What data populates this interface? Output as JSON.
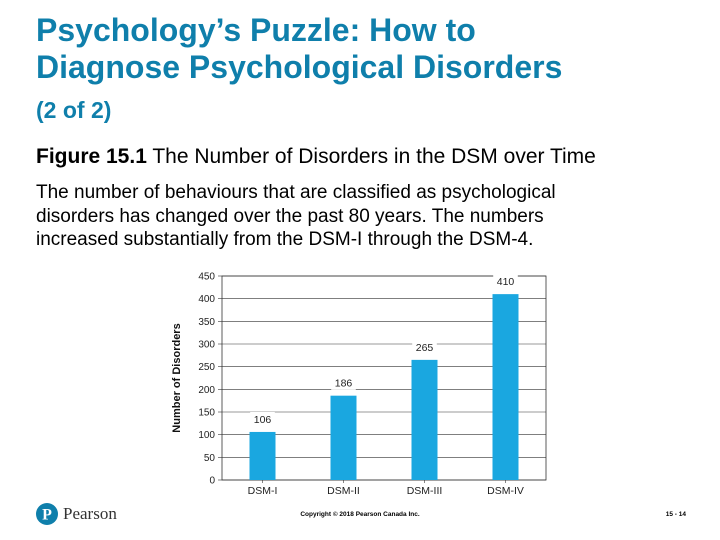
{
  "slide": {
    "title_line1": "Psychology’s Puzzle: How to",
    "title_line2": "Diagnose Psychological Disorders",
    "subtitle": "(2 of 2)",
    "figure_label": "Figure 15.1",
    "figure_title": " The Number of Disorders in the DSM over Time",
    "description_lines": [
      "The number of behaviours that are classified as psychological",
      "disorders has changed over the past 80 years. The numbers",
      "increased substantially from the DSM-I through the DSM-4."
    ]
  },
  "chart_data": {
    "type": "bar",
    "categories": [
      "DSM-I",
      "DSM-II",
      "DSM-III",
      "DSM-IV"
    ],
    "values": [
      106,
      186,
      265,
      410
    ],
    "data_labels": [
      "106",
      "186",
      "265",
      "410"
    ],
    "ylabel": "Number of Disorders",
    "xlabel": "",
    "ylim": [
      0,
      450
    ],
    "yticks": [
      0,
      50,
      100,
      150,
      200,
      250,
      300,
      350,
      400,
      450
    ],
    "grid": true,
    "bar_color": "#1aa7e0"
  },
  "footer": {
    "brand": "Pearson",
    "brand_icon": "pearson-p-icon",
    "copyright": "Copyright © 2018 Pearson Canada Inc.",
    "page": "15 - 14"
  },
  "colors": {
    "title": "#0f7fab",
    "logo": "#0f7fab"
  }
}
